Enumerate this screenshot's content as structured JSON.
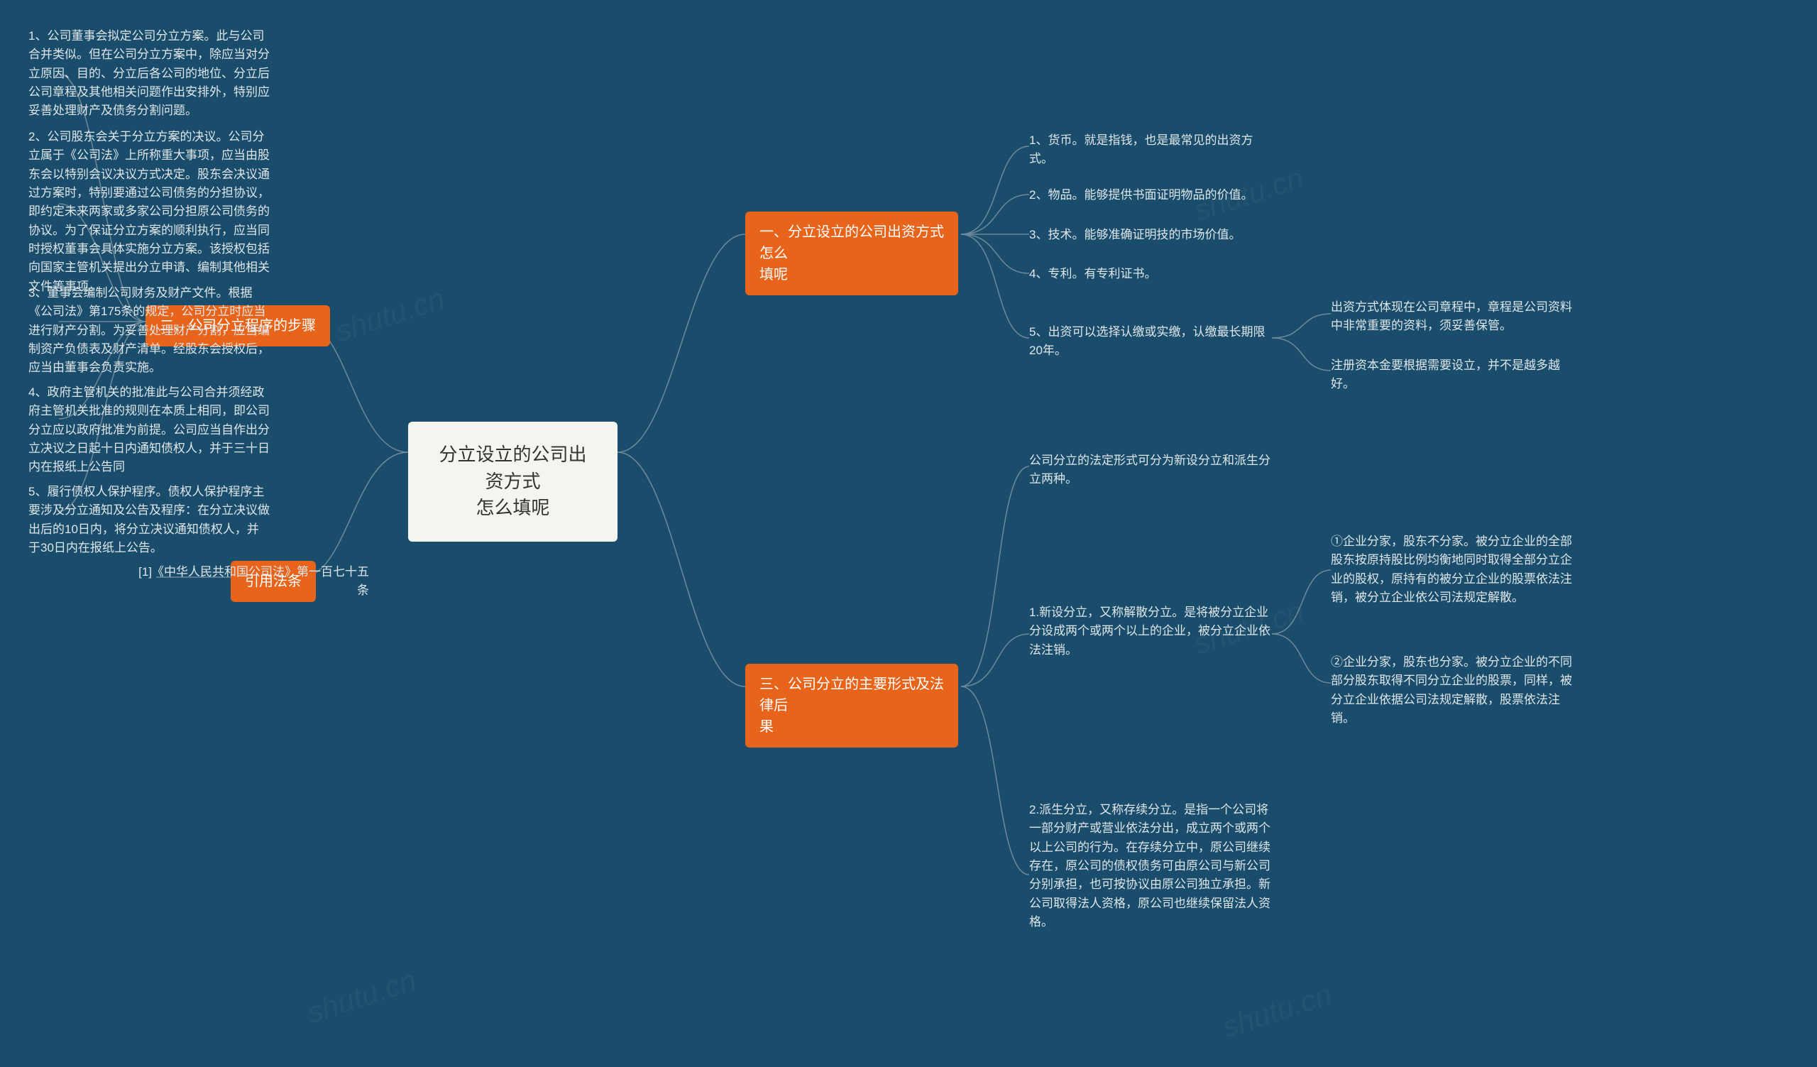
{
  "colors": {
    "background": "#1a4d6b",
    "center_bg": "#f5f5f0",
    "center_text": "#333333",
    "branch_bg": "#e8641b",
    "branch_text": "#ffffff",
    "leaf_text": "#dfe6ea",
    "connector": "#6e8a9a",
    "watermark": "rgba(255,255,255,0.04)"
  },
  "fonts": {
    "center_size": 26,
    "branch_size": 20,
    "leaf_size": 17
  },
  "watermark_text": "shutu.cn",
  "center": {
    "title_l1": "分立设立的公司出资方式",
    "title_l2": "怎么填呢"
  },
  "right": {
    "b1": {
      "title_l1": "一、分立设立的公司出资方式怎么",
      "title_l2": "填呢",
      "leaves": {
        "l1": "1、货币。就是指钱，也是最常见的出资方式。",
        "l2": "2、物品。能够提供书面证明物品的价值。",
        "l3": "3、技术。能够准确证明技的市场价值。",
        "l4": "4、专利。有专利证书。",
        "l5": "5、出资可以选择认缴或实缴，认缴最长期限20年。",
        "l5a": "出资方式体现在公司章程中，章程是公司资料中非常重要的资料，须妥善保管。",
        "l5b": "注册资本金要根据需要设立，并不是越多越好。"
      }
    },
    "b2": {
      "title_l1": "三、公司分立的主要形式及法律后",
      "title_l2": "果",
      "leaves": {
        "l1": "公司分立的法定形式可分为新设分立和派生分立两种。",
        "l2": "1.新设分立，又称解散分立。是将被分立企业分设成两个或两个以上的企业，被分立企业依法注销。",
        "l2a": "①企业分家，股东不分家。被分立企业的全部股东按原持股比例均衡地同时取得全部分立企业的股权，原持有的被分立企业的股票依法注销，被分立企业依公司法规定解散。",
        "l2b": "②企业分家，股东也分家。被分立企业的不同部分股东取得不同分立企业的股票，同样，被分立企业依据公司法规定解散，股票依法注销。",
        "l3": "2.派生分立，又称存续分立。是指一个公司将一部分财产或营业依法分出，成立两个或两个以上公司的行为。在存续分立中，原公司继续存在，原公司的债权债务可由原公司与新公司分别承担，也可按协议由原公司独立承担。新公司取得法人资格，原公司也继续保留法人资格。"
      }
    }
  },
  "left": {
    "b1": {
      "title": "二、公司分立程序的步骤",
      "leaves": {
        "l1": "1、公司董事会拟定公司分立方案。此与公司合并类似。但在公司分立方案中，除应当对分立原因、目的、分立后各公司的地位、分立后公司章程及其他相关问题作出安排外，特别应妥善处理财产及债务分割问题。",
        "l2": "2、公司股东会关于分立方案的决议。公司分立属于《公司法》上所称重大事项，应当由股东会以特别会议决议方式决定。股东会决议通过方案时，特别要通过公司债务的分担协议，即约定未来两家或多家公司分担原公司债务的协议。为了保证分立方案的顺利执行，应当同时授权董事会具体实施分立方案。该授权包括向国家主管机关提出分立申请、编制其他相关文件等事项。",
        "l3": "3、董事会编制公司财务及财产文件。根据《公司法》第175条的规定，公司分立时应当进行财产分割。为妥善处理财产分割，应当编制资产负债表及财产清单。经股东会授权后，应当由董事会负责实施。",
        "l4": "4、政府主管机关的批准此与公司合并须经政府主管机关批准的规则在本质上相同，即公司分立应以政府批准为前提。公司应当自作出分立决议之日起十日内通知债权人，并于三十日内在报纸上公告同",
        "l5": "5、履行债权人保护程序。债权人保护程序主要涉及分立通知及公告及程序：在分立决议做出后的10日内，将分立决议通知债权人，并于30日内在报纸上公告。"
      }
    },
    "b2": {
      "title": "引用法条",
      "leaves": {
        "l1": "[1]《中华人民共和国公司法》第一百七十五条"
      }
    }
  }
}
